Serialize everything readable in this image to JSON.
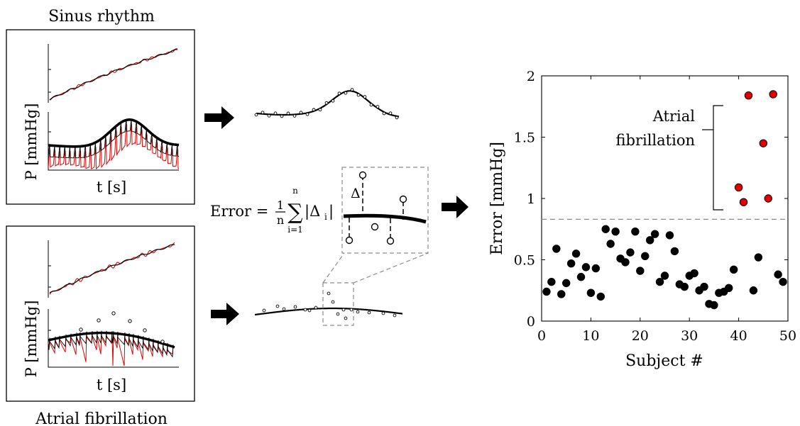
{
  "labels": {
    "sinus_title": "Sinus rhythm",
    "af_title": "Atrial fibrillation",
    "p_axis": "P [mmHg]",
    "t_axis": "t [s]"
  },
  "formula": {
    "lhs": "Error = ",
    "frac_num": "1",
    "frac_den": "n",
    "sum_top": "n",
    "sum_sym": "∑",
    "sum_bottom": "i=1",
    "abs_term": "|Δ",
    "abs_sub": "i",
    "abs_close": "|",
    "delta": "Δ"
  },
  "chart_data": {
    "type": "scatter",
    "xlabel": "Subject #",
    "ylabel": "Error [mmHg]",
    "xlim": [
      0,
      50
    ],
    "ylim": [
      0,
      2
    ],
    "xticks": [
      "0",
      "10",
      "20",
      "30",
      "40",
      "50"
    ],
    "yticks": [
      "0",
      "0.5",
      "1",
      "1.5",
      "2"
    ],
    "threshold": 0.83,
    "annotation": "Atrial fibrillation",
    "series": [
      {
        "color": "#000000",
        "points": [
          [
            1,
            0.24
          ],
          [
            2,
            0.32
          ],
          [
            3,
            0.59
          ],
          [
            4,
            0.22
          ],
          [
            5,
            0.31
          ],
          [
            6,
            0.47
          ],
          [
            7,
            0.55
          ],
          [
            8,
            0.36
          ],
          [
            9,
            0.44
          ],
          [
            10,
            0.23
          ],
          [
            11,
            0.43
          ],
          [
            12,
            0.2
          ],
          [
            13,
            0.75
          ],
          [
            14,
            0.63
          ],
          [
            15,
            0.73
          ],
          [
            16,
            0.51
          ],
          [
            17,
            0.48
          ],
          [
            18,
            0.56
          ],
          [
            19,
            0.73
          ],
          [
            20,
            0.41
          ],
          [
            21,
            0.53
          ],
          [
            22,
            0.66
          ],
          [
            23,
            0.71
          ],
          [
            24,
            0.32
          ],
          [
            25,
            0.37
          ],
          [
            26,
            0.7
          ],
          [
            27,
            0.57
          ],
          [
            28,
            0.3
          ],
          [
            29,
            0.28
          ],
          [
            30,
            0.37
          ],
          [
            31,
            0.39
          ],
          [
            32,
            0.25
          ],
          [
            33,
            0.28
          ],
          [
            34,
            0.14
          ],
          [
            35,
            0.13
          ],
          [
            36,
            0.23
          ],
          [
            37,
            0.24
          ],
          [
            38,
            0.27
          ],
          [
            39,
            0.42
          ],
          [
            43,
            0.25
          ],
          [
            44,
            0.52
          ],
          [
            48,
            0.38
          ],
          [
            49,
            0.32
          ]
        ]
      },
      {
        "color": "#e00000",
        "points": [
          [
            40,
            1.09
          ],
          [
            41,
            0.97
          ],
          [
            42,
            1.84
          ],
          [
            45,
            1.45
          ],
          [
            46,
            1.0
          ],
          [
            47,
            1.85
          ]
        ]
      }
    ]
  }
}
